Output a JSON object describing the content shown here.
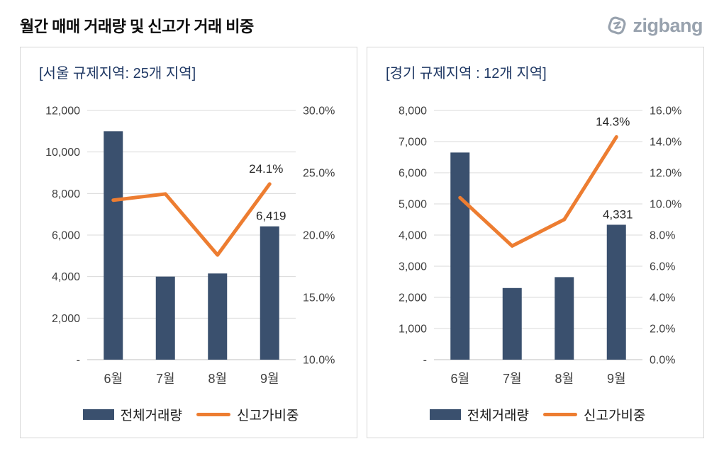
{
  "page": {
    "title": "월간 매매 거래량 및 신고가 거래 비중",
    "logo_text": "zigbang"
  },
  "colors": {
    "bar": "#3A506E",
    "line": "#ED7D31",
    "grid": "#D9D9D9",
    "axis_line": "#BFBFBF",
    "axis_text": "#404040",
    "label_text": "#262626",
    "panel_title": "#1F3864",
    "logo": "#98A2AE"
  },
  "legend": {
    "bar_label": "전체거래량",
    "line_label": "신고가비중"
  },
  "chart_data": [
    {
      "type": "bar+line",
      "title": "[서울 규제지역: 25개 지역]",
      "categories": [
        "6월",
        "7월",
        "8월",
        "9월"
      ],
      "series": [
        {
          "name": "전체거래량",
          "type": "bar",
          "axis": "left",
          "values": [
            11000,
            4000,
            4150,
            6419
          ],
          "last_label": "6,419"
        },
        {
          "name": "신고가비중",
          "type": "line",
          "axis": "right",
          "values": [
            22.8,
            23.3,
            18.4,
            24.1
          ],
          "last_label": "24.1%"
        }
      ],
      "left_axis": {
        "min": 0,
        "max": 12000,
        "labels": [
          "12,000",
          "10,000",
          "8,000",
          "6,000",
          "4,000",
          "2,000",
          "-"
        ]
      },
      "right_axis": {
        "min": 10,
        "max": 30,
        "labels": [
          "30.0%",
          "25.0%",
          "20.0%",
          "15.0%",
          "10.0%"
        ]
      },
      "legend_position": "bottom",
      "grid": true
    },
    {
      "type": "bar+line",
      "title": "[경기 규제지역 : 12개 지역]",
      "categories": [
        "6월",
        "7월",
        "8월",
        "9월"
      ],
      "series": [
        {
          "name": "전체거래량",
          "type": "bar",
          "axis": "left",
          "values": [
            6650,
            2300,
            2650,
            4331
          ],
          "last_label": "4,331"
        },
        {
          "name": "신고가비중",
          "type": "line",
          "axis": "right",
          "values": [
            10.4,
            7.3,
            9.0,
            14.3
          ],
          "last_label": "14.3%"
        }
      ],
      "left_axis": {
        "min": 0,
        "max": 8000,
        "labels": [
          "8,000",
          "7,000",
          "6,000",
          "5,000",
          "4,000",
          "3,000",
          "2,000",
          "1,000",
          "-"
        ]
      },
      "right_axis": {
        "min": 0,
        "max": 16,
        "labels": [
          "16.0%",
          "14.0%",
          "12.0%",
          "10.0%",
          "8.0%",
          "6.0%",
          "4.0%",
          "2.0%",
          "0.0%"
        ]
      },
      "legend_position": "bottom",
      "grid": true
    }
  ]
}
